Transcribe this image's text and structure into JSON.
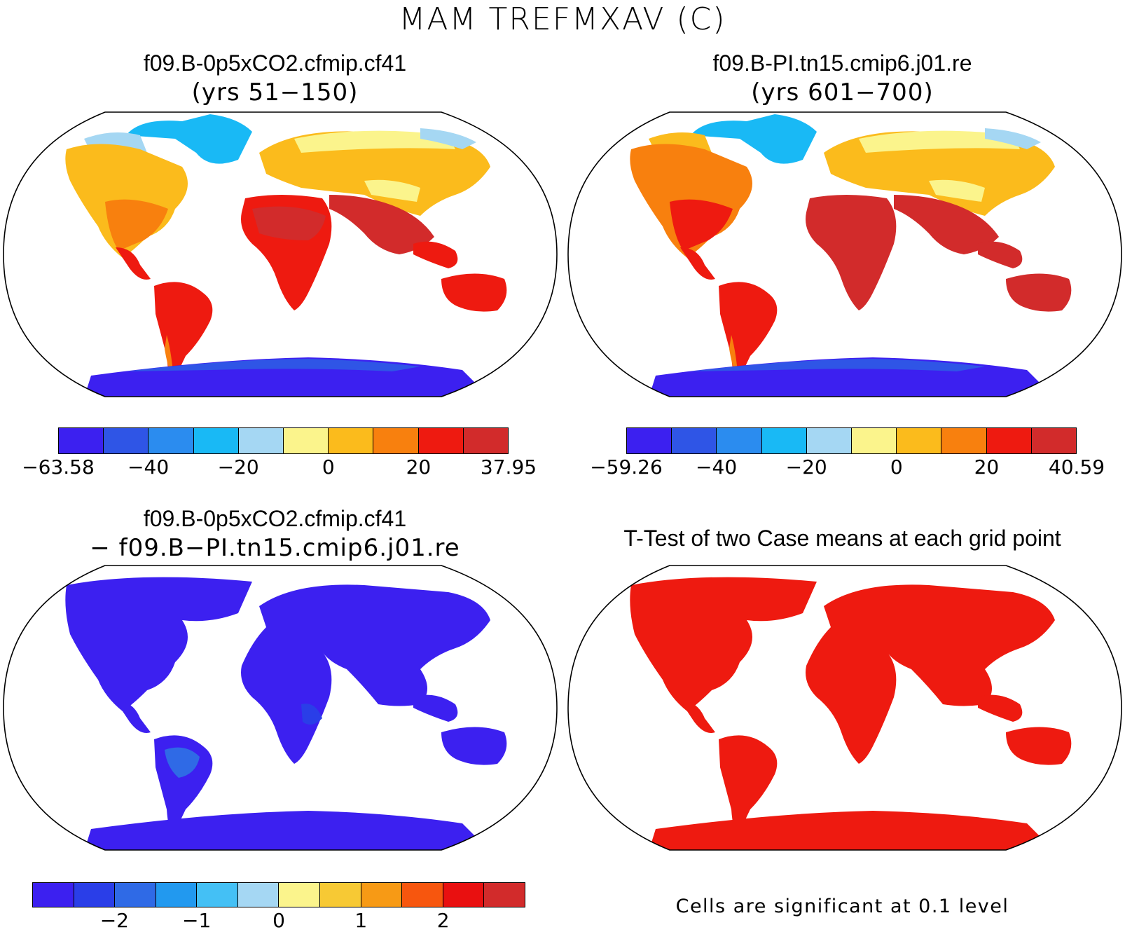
{
  "figure": {
    "title": "MAM TREFMXAV (C)",
    "panels": [
      {
        "id": "case1",
        "title": "f09.B-0p5xCO2.cfmip.cf41",
        "subtitle": "(yrs 51−150)",
        "colorbar": {
          "colors": [
            "#3c20f0",
            "#2f55e6",
            "#2b8cef",
            "#19b9f5",
            "#a5d7f3",
            "#fbf48c",
            "#fbbb1c",
            "#f8800e",
            "#ee1a10",
            "#d22b2b"
          ],
          "tick_labels": [
            "−63.58",
            "−40",
            "−20",
            "0",
            "20",
            "37.95"
          ]
        }
      },
      {
        "id": "case2",
        "title": "f09.B-PI.tn15.cmip6.j01.re",
        "subtitle": "(yrs 601−700)",
        "colorbar": {
          "colors": [
            "#3c20f0",
            "#2f55e6",
            "#2b8cef",
            "#19b9f5",
            "#a5d7f3",
            "#fbf48c",
            "#fbbb1c",
            "#f8800e",
            "#ee1a10",
            "#d22b2b"
          ],
          "tick_labels": [
            "−59.26",
            "−40",
            "−20",
            "0",
            "20",
            "40.59"
          ]
        }
      },
      {
        "id": "diff",
        "title": "f09.B-0p5xCO2.cfmip.cf41",
        "subtitle": "− f09.B−PI.tn15.cmip6.j01.re",
        "colorbar": {
          "colors": [
            "#3c20f0",
            "#2a3ee8",
            "#2f6ae6",
            "#2299ef",
            "#44c0f5",
            "#a5d7f3",
            "#fbf48c",
            "#f7c934",
            "#f79a15",
            "#f7560e",
            "#e91010",
            "#d22b2b"
          ],
          "tick_labels": [
            "−2",
            "−1",
            "0",
            "1",
            "2"
          ]
        }
      },
      {
        "id": "ttest",
        "title": "T-Test of two Case means at each grid point",
        "note": "Cells are significant at 0.1 level"
      }
    ]
  }
}
